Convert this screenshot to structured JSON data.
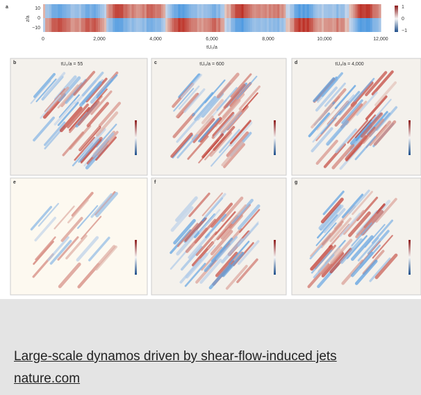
{
  "figure": {
    "strip": {
      "letter": "a",
      "ylabel": "z/a",
      "yticks": [
        "10",
        "0",
        "−10"
      ],
      "xticks": [
        "0",
        "2,000",
        "4,000",
        "6,000",
        "8,000",
        "10,000",
        "12,000"
      ],
      "xlabel": "tU₀/a",
      "colorbar": [
        "1",
        "0",
        "−1"
      ]
    },
    "panels": [
      {
        "letter": "b",
        "title": "tU₀/a = 55"
      },
      {
        "letter": "c",
        "title": "tU₀/a = 600"
      },
      {
        "letter": "d",
        "title": "tU₀/a = 4,000"
      },
      {
        "letter": "e"
      },
      {
        "letter": "f"
      },
      {
        "letter": "g"
      }
    ]
  },
  "link": {
    "title": "Large-scale dynamos driven by shear-flow-induced jets",
    "source": "nature.com"
  }
}
